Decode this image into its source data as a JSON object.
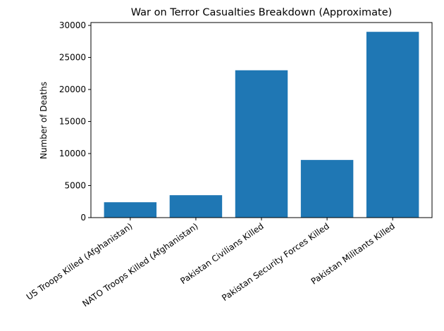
{
  "chart_data": {
    "type": "bar",
    "title": "War on Terror Casualties Breakdown (Approximate)",
    "xlabel": "",
    "ylabel": "Number of Deaths",
    "categories": [
      "US Troops Killed (Afghanistan)",
      "NATO Troops Killed (Afghanistan)",
      "Pakistan Civilians Killed",
      "Pakistan Security Forces Killed",
      "Pakistan Militants Killed"
    ],
    "values": [
      2400,
      3500,
      23000,
      9000,
      29000
    ],
    "ylim": [
      0,
      30450
    ],
    "yticks": [
      0,
      5000,
      10000,
      15000,
      20000,
      25000,
      30000
    ],
    "bar_color": "#1f77b4",
    "grid": false,
    "legend": "none"
  }
}
